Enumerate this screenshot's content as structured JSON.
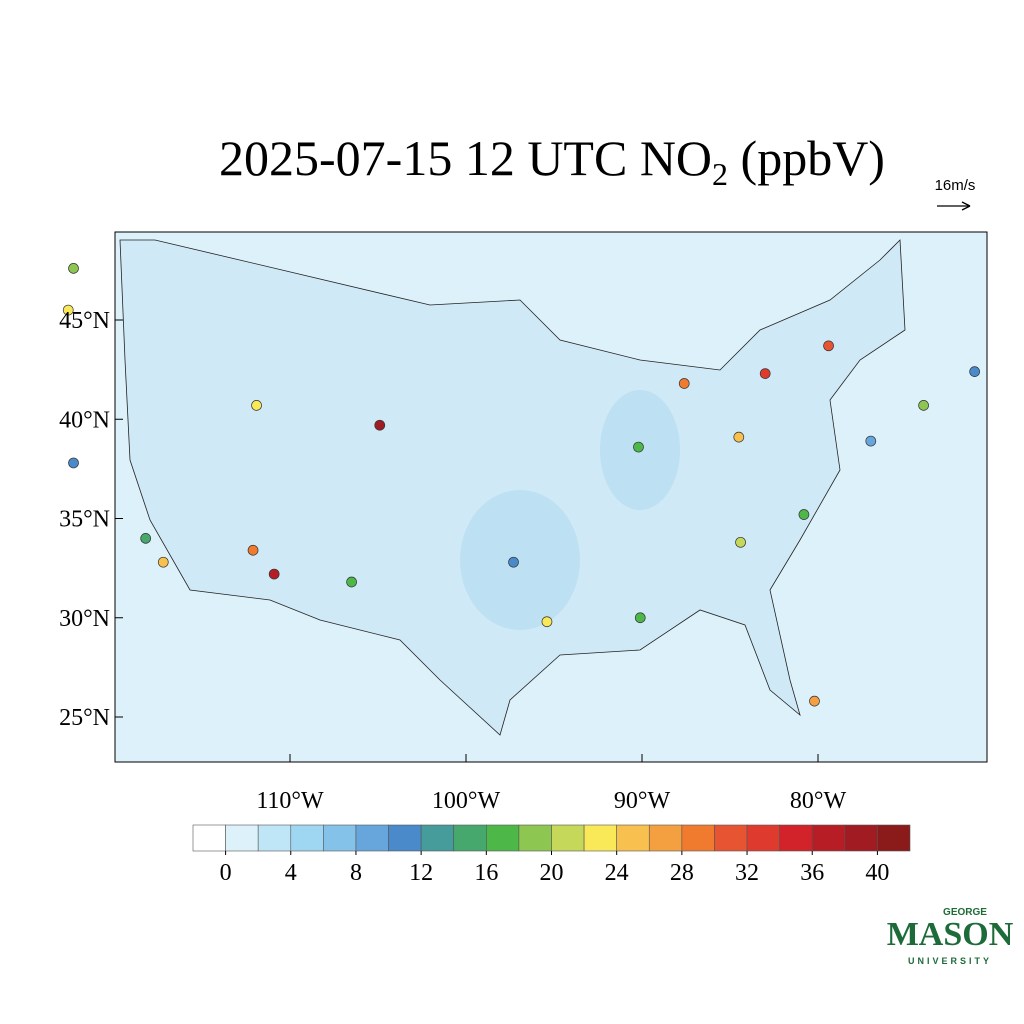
{
  "map": {
    "title": {
      "text": "2025-07-15 12 UTC NO",
      "subscript": "2",
      "suffix": " (ppbV)"
    },
    "wind_reference": "16m/s",
    "lat_ticks": [
      {
        "value": 25,
        "label": "25°N"
      },
      {
        "value": 30,
        "label": "30°N"
      },
      {
        "value": 35,
        "label": "35°N"
      },
      {
        "value": 40,
        "label": "40°N"
      },
      {
        "value": 45,
        "label": "45°N"
      }
    ],
    "lon_ticks": [
      {
        "value": -110,
        "label": "110°W"
      },
      {
        "value": -100,
        "label": "100°W"
      },
      {
        "value": -90,
        "label": "90°W"
      },
      {
        "value": -80,
        "label": "80°W"
      }
    ],
    "colorbar": {
      "colors": [
        "#ffffff",
        "#ddf1fa",
        "#bfe6f7",
        "#9fd6f2",
        "#84c2ea",
        "#66a6dc",
        "#4a8acb",
        "#459c9a",
        "#46a86d",
        "#4db848",
        "#8dc751",
        "#c6d85a",
        "#f9e858",
        "#f7c04f",
        "#f5a040",
        "#f07b2f",
        "#e75431",
        "#df3a2e",
        "#d2232a",
        "#b71d25",
        "#a11b22",
        "#8b1a1a"
      ],
      "step": 2,
      "ticks": [
        0,
        4,
        8,
        12,
        16,
        20,
        24,
        28,
        32,
        36,
        40
      ]
    },
    "stations": [
      {
        "lon": -122.3,
        "lat": 47.6,
        "value": 18
      },
      {
        "lon": -122.6,
        "lat": 45.5,
        "value": 22
      },
      {
        "lon": -122.3,
        "lat": 37.8,
        "value": 10
      },
      {
        "lon": -118.2,
        "lat": 34.0,
        "value": 14
      },
      {
        "lon": -117.2,
        "lat": 32.8,
        "value": 24
      },
      {
        "lon": -112.1,
        "lat": 33.4,
        "value": 28
      },
      {
        "lon": -110.9,
        "lat": 32.2,
        "value": 36
      },
      {
        "lon": -111.9,
        "lat": 40.7,
        "value": 22
      },
      {
        "lon": -104.9,
        "lat": 39.7,
        "value": 38
      },
      {
        "lon": -106.5,
        "lat": 31.8,
        "value": 16
      },
      {
        "lon": -95.4,
        "lat": 29.8,
        "value": 22
      },
      {
        "lon": -90.1,
        "lat": 30.0,
        "value": 16
      },
      {
        "lon": -97.3,
        "lat": 32.8,
        "value": 10
      },
      {
        "lon": -87.6,
        "lat": 41.8,
        "value": 28
      },
      {
        "lon": -83.0,
        "lat": 42.3,
        "value": 32
      },
      {
        "lon": -79.4,
        "lat": 43.7,
        "value": 30
      },
      {
        "lon": -84.4,
        "lat": 33.8,
        "value": 20
      },
      {
        "lon": -80.2,
        "lat": 25.8,
        "value": 26
      },
      {
        "lon": -74.0,
        "lat": 40.7,
        "value": 18
      },
      {
        "lon": -77.0,
        "lat": 38.9,
        "value": 8
      },
      {
        "lon": -71.1,
        "lat": 42.4,
        "value": 10
      },
      {
        "lon": -90.2,
        "lat": 38.6,
        "value": 16
      },
      {
        "lon": -84.5,
        "lat": 39.1,
        "value": 24
      },
      {
        "lon": -80.8,
        "lat": 35.2,
        "value": 16
      }
    ],
    "logo": {
      "top": "GEORGE",
      "main": "MASON",
      "bottom": "UNIVERSITY"
    }
  }
}
